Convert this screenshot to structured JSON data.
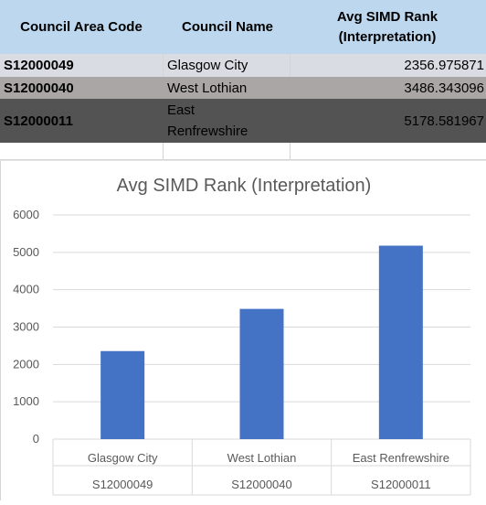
{
  "table": {
    "headers": [
      "Council Area Code",
      "Council Name",
      "Avg SIMD Rank\n(Interpretation)"
    ],
    "header_c3_line1": "Avg SIMD Rank",
    "header_c3_line2": "(Interpretation)",
    "rows": [
      {
        "code": "S12000049",
        "name": "Glasgow City",
        "value": "2356.975871"
      },
      {
        "code": "S12000040",
        "name": "West Lothian",
        "value": "3486.343096"
      },
      {
        "code": "S12000011",
        "name_line1": "East",
        "name_line2": "Renfrewshire",
        "value": "5178.581967"
      }
    ]
  },
  "colors": {
    "header_bg": "#bdd7ee",
    "row1_bg": "#d9dde3",
    "row2_bg": "#aba6a6",
    "row3_bg": "#535353",
    "bar": "#4472c4"
  },
  "chart_data": {
    "type": "bar",
    "title": "Avg SIMD Rank (Interpretation)",
    "categories": [
      "Glasgow City",
      "West Lothian",
      "East Renfrewshire"
    ],
    "sub_categories": [
      "S12000049",
      "S12000040",
      "S12000011"
    ],
    "values": [
      2356.975871,
      3486.343096,
      5178.581967
    ],
    "yticks": [
      0,
      1000,
      2000,
      3000,
      4000,
      5000,
      6000
    ],
    "ylim": [
      0,
      6000
    ],
    "grid": true,
    "legend": false
  }
}
